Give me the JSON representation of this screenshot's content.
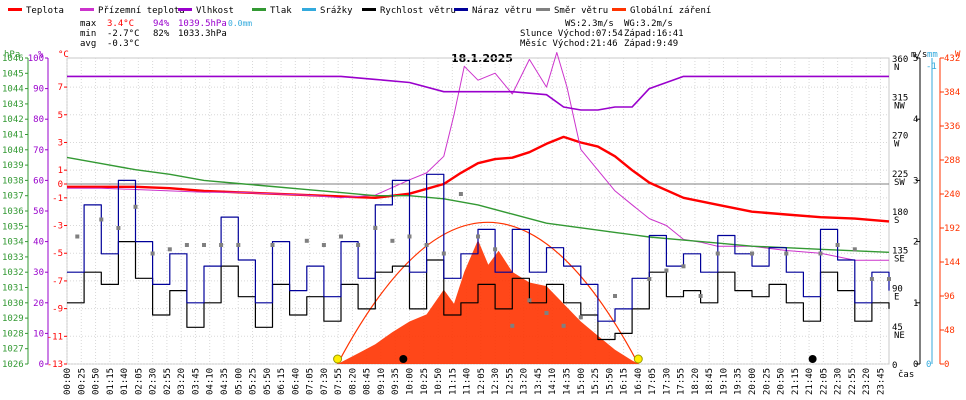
{
  "title": "18.1.2025",
  "legend": [
    {
      "label": "Teplota",
      "color": "#ff0000"
    },
    {
      "label": "Přízemní teplota",
      "color": "#cc33cc"
    },
    {
      "label": "Vlhkost",
      "color": "#9900cc"
    },
    {
      "label": "Tlak",
      "color": "#339933"
    },
    {
      "label": "Srážky",
      "color": "#33aadd"
    },
    {
      "label": "Rychlost větru",
      "color": "#000000"
    },
    {
      "label": "Náraz větru",
      "color": "#000099"
    },
    {
      "label": "Směr větru",
      "color": "#808080"
    },
    {
      "label": "Globální záření",
      "color": "#ff3300"
    }
  ],
  "stats": {
    "max_label": "max",
    "max_temp": "3.4°C",
    "max_hum": "94%",
    "max_press": "1039.5hPa",
    "max_rain": "0.0mm",
    "min_label": "min",
    "min_temp": "-2.7°C",
    "min_hum": "82%",
    "min_press": "1033.3hPa",
    "avg_label": "avg",
    "avg_temp": "-0.3°C",
    "ws": "WS:2.3m/s",
    "wg": "WG:3.2m/s",
    "sun": "Slunce Východ:07:54",
    "sun_set": "Západ:16:41",
    "moon": "Měsíc  Východ:21:46",
    "moon_set": "Západ:9:49"
  },
  "axes": {
    "hpa_title": "hPa",
    "pct_title": "%",
    "c_title": "°C",
    "ms_title": "m/s",
    "mm_title": "mm",
    "w_title": "W",
    "x_title": "čas",
    "hpa_ticks": [
      "1046",
      "1045",
      "1044",
      "1043",
      "1042",
      "1041",
      "1040",
      "1039",
      "1038",
      "1037",
      "1036",
      "1035",
      "1034",
      "1033",
      "1032",
      "1031",
      "1030",
      "1029",
      "1028",
      "1027",
      "1026"
    ],
    "pct_ticks": [
      "100",
      "90",
      "80",
      "70",
      "60",
      "50",
      "40",
      "30",
      "20",
      "10",
      "0"
    ],
    "c_ticks": [
      "7",
      "5",
      "3",
      "1",
      "0",
      "-1",
      "-3",
      "-5",
      "-7",
      "-9",
      "-11",
      "-13"
    ],
    "dir_ticks": [
      "360",
      "N",
      "315",
      "NW",
      "270",
      "W",
      "225",
      "SW",
      "180",
      "S",
      "135",
      "SE",
      "90",
      "E",
      "45",
      "NE",
      "0"
    ],
    "ms_ticks": [
      "5",
      "4",
      "3",
      "2",
      "1",
      "0"
    ],
    "mm_ticks": [
      "-1",
      "0"
    ],
    "w_ticks": [
      "432",
      "384",
      "336",
      "288",
      "240",
      "192",
      "144",
      "96",
      "48",
      "0"
    ],
    "time_ticks": [
      "00:00",
      "00:25",
      "00:50",
      "01:15",
      "01:40",
      "02:05",
      "02:30",
      "02:55",
      "03:20",
      "03:45",
      "04:10",
      "04:35",
      "05:00",
      "05:25",
      "05:50",
      "06:15",
      "06:40",
      "07:05",
      "07:30",
      "07:55",
      "08:20",
      "08:45",
      "09:10",
      "09:35",
      "10:00",
      "10:25",
      "10:50",
      "11:15",
      "11:40",
      "12:05",
      "12:30",
      "12:55",
      "13:20",
      "13:45",
      "14:10",
      "14:35",
      "15:00",
      "15:25",
      "15:50",
      "16:15",
      "16:40",
      "17:05",
      "17:30",
      "17:55",
      "18:20",
      "18:45",
      "19:10",
      "19:35",
      "20:00",
      "20:25",
      "20:50",
      "21:15",
      "21:40",
      "22:05",
      "22:30",
      "22:55",
      "23:20",
      "23:45"
    ]
  },
  "chart_data": {
    "type": "line",
    "x_unit": "hours",
    "series": [
      {
        "name": "Teplota",
        "unit": "°C",
        "color": "#ff0000",
        "x": [
          0,
          1,
          2,
          3,
          4,
          5,
          6,
          7,
          8,
          9,
          10,
          11,
          11.5,
          12,
          12.5,
          13,
          13.5,
          14,
          14.5,
          15,
          15.5,
          16,
          16.5,
          17,
          18,
          19,
          20,
          21,
          22,
          23,
          24
        ],
        "y": [
          -0.2,
          -0.2,
          -0.2,
          -0.3,
          -0.5,
          -0.6,
          -0.7,
          -0.8,
          -0.9,
          -1.0,
          -0.7,
          0.0,
          0.8,
          1.5,
          1.8,
          1.9,
          2.3,
          2.9,
          3.4,
          3.0,
          2.7,
          2.0,
          1.0,
          0.1,
          -1.0,
          -1.5,
          -2.0,
          -2.2,
          -2.4,
          -2.5,
          -2.7
        ]
      },
      {
        "name": "Přízemní teplota",
        "unit": "°C",
        "color": "#cc33cc",
        "x": [
          0,
          1,
          2,
          3,
          4,
          5,
          6,
          7,
          8,
          9,
          10,
          10.5,
          11,
          11.3,
          11.6,
          12,
          12.5,
          13,
          13.5,
          14,
          14.3,
          14.6,
          15,
          15.5,
          16,
          16.5,
          17,
          17.5,
          18,
          18.5,
          19,
          20,
          21,
          22,
          23,
          24
        ],
        "y": [
          -0.3,
          -0.3,
          -0.4,
          -0.5,
          -0.6,
          -0.6,
          -0.7,
          -0.8,
          -1.0,
          -0.8,
          0.3,
          0.8,
          2.0,
          5.0,
          8.5,
          7.5,
          8.0,
          6.5,
          9.0,
          7.0,
          9.5,
          7.0,
          2.5,
          1.0,
          -0.5,
          -1.5,
          -2.5,
          -3.0,
          -4.0,
          -4.2,
          -4.5,
          -4.5,
          -4.8,
          -5.0,
          -5.5,
          -5.5
        ]
      },
      {
        "name": "Vlhkost",
        "unit": "%",
        "color": "#9900cc",
        "x": [
          0,
          2,
          4,
          6,
          8,
          9,
          10,
          11,
          12,
          13,
          14,
          14.5,
          15,
          15.5,
          16,
          16.5,
          17,
          18,
          20,
          22,
          24
        ],
        "y": [
          94,
          94,
          94,
          94,
          94,
          93,
          92,
          89,
          89,
          89,
          88,
          84,
          83,
          83,
          84,
          84,
          90,
          94,
          94,
          94,
          94
        ]
      },
      {
        "name": "Tlak",
        "unit": "hPa",
        "color": "#339933",
        "x": [
          0,
          1,
          2,
          3,
          4,
          5,
          6,
          7,
          8,
          9,
          10,
          11,
          12,
          13,
          14,
          15,
          16,
          17,
          18,
          19,
          20,
          21,
          22,
          23,
          24
        ],
        "y": [
          1039.5,
          1039.1,
          1038.7,
          1038.4,
          1038.0,
          1037.8,
          1037.6,
          1037.4,
          1037.2,
          1037.0,
          1037.0,
          1036.8,
          1036.4,
          1035.8,
          1035.2,
          1034.9,
          1034.6,
          1034.3,
          1034.1,
          1033.9,
          1033.7,
          1033.6,
          1033.5,
          1033.4,
          1033.3
        ]
      },
      {
        "name": "Rychlost větru",
        "unit": "m/s",
        "color": "#000000",
        "x": [
          0,
          0.5,
          1,
          1.5,
          2,
          2.5,
          3,
          3.5,
          4,
          4.5,
          5,
          5.5,
          6,
          6.5,
          7,
          7.5,
          8,
          8.5,
          9,
          9.5,
          10,
          10.5,
          11,
          11.5,
          12,
          12.5,
          13,
          13.5,
          14,
          14.5,
          15,
          15.5,
          16,
          16.5,
          17,
          17.5,
          18,
          18.5,
          19,
          19.5,
          20,
          20.5,
          21,
          21.5,
          22,
          22.5,
          23,
          23.5,
          24
        ],
        "y": [
          1.0,
          1.5,
          1.3,
          2.0,
          1.4,
          0.8,
          1.2,
          0.6,
          1.0,
          1.6,
          1.1,
          0.6,
          1.3,
          0.8,
          1.1,
          0.7,
          1.3,
          0.9,
          1.5,
          1.6,
          0.9,
          1.7,
          0.8,
          1.0,
          1.3,
          0.9,
          1.4,
          1.0,
          1.3,
          1.0,
          0.8,
          0.4,
          0.5,
          0.9,
          1.5,
          1.1,
          1.2,
          1.0,
          1.5,
          1.2,
          1.1,
          1.3,
          1.0,
          0.7,
          1.5,
          1.2,
          0.7,
          1.0,
          0.9
        ]
      },
      {
        "name": "Náraz větru",
        "unit": "m/s",
        "color": "#000099",
        "x": [
          0,
          0.5,
          1,
          1.5,
          2,
          2.5,
          3,
          3.5,
          4,
          4.5,
          5,
          5.5,
          6,
          6.5,
          7,
          7.5,
          8,
          8.5,
          9,
          9.5,
          10,
          10.5,
          11,
          11.5,
          12,
          12.5,
          13,
          13.5,
          14,
          14.5,
          15,
          15.5,
          16,
          16.5,
          17,
          17.5,
          18,
          18.5,
          19,
          19.5,
          20,
          20.5,
          21,
          21.5,
          22,
          22.5,
          23,
          23.5,
          24
        ],
        "y": [
          1.5,
          2.6,
          1.8,
          3.0,
          2.0,
          1.3,
          1.8,
          1.0,
          1.6,
          2.4,
          1.7,
          1.0,
          2.0,
          1.2,
          1.6,
          1.1,
          2.0,
          1.4,
          2.6,
          3.0,
          1.5,
          3.1,
          1.4,
          1.8,
          2.2,
          1.5,
          2.2,
          1.5,
          1.9,
          1.6,
          1.3,
          0.7,
          0.9,
          1.4,
          2.1,
          1.6,
          1.8,
          1.5,
          2.1,
          1.8,
          1.6,
          1.9,
          1.5,
          1.1,
          2.2,
          1.7,
          1.0,
          1.5,
          1.2
        ]
      },
      {
        "name": "Globální záření",
        "unit": "W",
        "color": "#ff3300",
        "x": [
          7.9,
          8.5,
          9.0,
          9.5,
          10.0,
          10.5,
          11.0,
          11.3,
          11.6,
          12.0,
          12.3,
          12.6,
          13.0,
          13.5,
          14.0,
          14.5,
          15.0,
          15.5,
          16.0,
          16.5,
          16.7
        ],
        "y": [
          0,
          15,
          28,
          45,
          60,
          70,
          105,
          85,
          130,
          175,
          140,
          160,
          130,
          115,
          110,
          85,
          60,
          40,
          20,
          5,
          0
        ]
      }
    ],
    "wind_direction": {
      "name": "Směr větru",
      "x": [
        0.3,
        1.0,
        1.5,
        2.0,
        2.5,
        3.0,
        3.5,
        4.0,
        4.5,
        5.0,
        6.0,
        7.0,
        7.5,
        8.0,
        8.5,
        9.0,
        9.5,
        10.0,
        10.5,
        11.0,
        11.5,
        12.0,
        12.5,
        13.0,
        13.5,
        14.0,
        14.5,
        15.0,
        16.0,
        17.0,
        17.5,
        18.0,
        18.5,
        19.0,
        20.0,
        21.0,
        22.0,
        22.5,
        23.0,
        23.5,
        24.0
      ],
      "y": [
        150,
        170,
        160,
        185,
        130,
        135,
        140,
        140,
        140,
        140,
        140,
        145,
        140,
        150,
        140,
        160,
        145,
        150,
        140,
        130,
        200,
        150,
        135,
        45,
        75,
        60,
        45,
        55,
        80,
        100,
        110,
        115,
        80,
        130,
        130,
        130,
        130,
        140,
        135,
        100,
        100
      ]
    },
    "sunrise_h": 7.9,
    "sunset_h": 16.68,
    "moonrise_h": 21.77,
    "moonset_h": 9.82,
    "xlim": [
      0,
      24
    ],
    "temp_ylim": [
      -13,
      9.1
    ],
    "hum_ylim": [
      0,
      100
    ],
    "press_ylim": [
      1026,
      1046
    ],
    "wind_ylim": [
      0,
      5
    ],
    "rad_ylim": [
      0,
      432
    ],
    "dir_ylim": [
      0,
      360
    ]
  }
}
